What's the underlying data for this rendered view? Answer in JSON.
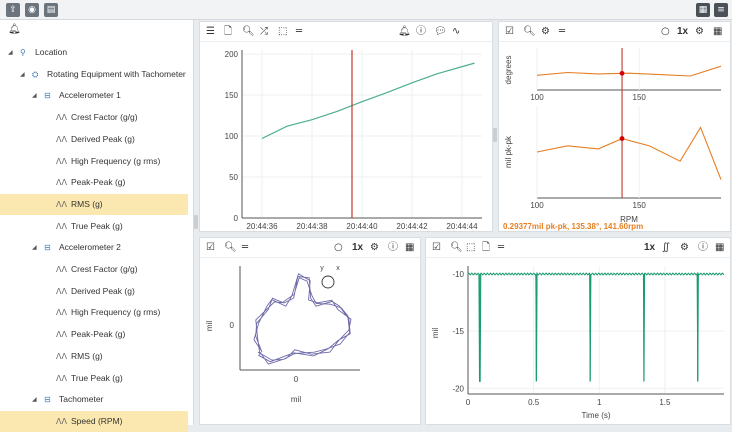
{
  "toolbar": {
    "icons": [
      "export-icon",
      "rss-icon",
      "document-icon"
    ],
    "right_icons": [
      "grid-layout-icon",
      "menu-icon"
    ]
  },
  "tree": {
    "items": [
      {
        "label": "Location",
        "level": 0,
        "icon": "location-pin-icon",
        "expanded": true
      },
      {
        "label": "Rotating Equipment with Tachometer",
        "level": 1,
        "icon": "machine-icon",
        "expanded": true
      },
      {
        "label": "Accelerometer 1",
        "level": 2,
        "icon": "sensor-icon",
        "expanded": true
      },
      {
        "label": "Crest Factor (g/g)",
        "level": 3,
        "icon": "waveform-icon"
      },
      {
        "label": "Derived Peak (g)",
        "level": 3,
        "icon": "waveform-icon"
      },
      {
        "label": "High Frequency (g rms)",
        "level": 3,
        "icon": "waveform-icon"
      },
      {
        "label": "Peak-Peak (g)",
        "level": 3,
        "icon": "waveform-icon"
      },
      {
        "label": "RMS (g)",
        "level": 3,
        "icon": "waveform-icon",
        "selected": true
      },
      {
        "label": "True Peak (g)",
        "level": 3,
        "icon": "waveform-icon"
      },
      {
        "label": "Accelerometer 2",
        "level": 2,
        "icon": "sensor-icon",
        "expanded": true
      },
      {
        "label": "Crest Factor (g/g)",
        "level": 3,
        "icon": "waveform-icon"
      },
      {
        "label": "Derived Peak (g)",
        "level": 3,
        "icon": "waveform-icon"
      },
      {
        "label": "High Frequency (g rms)",
        "level": 3,
        "icon": "waveform-icon"
      },
      {
        "label": "Peak-Peak (g)",
        "level": 3,
        "icon": "waveform-icon"
      },
      {
        "label": "RMS (g)",
        "level": 3,
        "icon": "waveform-icon"
      },
      {
        "label": "True Peak (g)",
        "level": 3,
        "icon": "waveform-icon"
      },
      {
        "label": "Tachometer",
        "level": 2,
        "icon": "sensor-icon",
        "expanded": true
      },
      {
        "label": "Speed (RPM)",
        "level": 3,
        "icon": "waveform-icon",
        "selected": true
      }
    ]
  },
  "trend_panel": {
    "zoom_label": "",
    "chart_data": {
      "type": "line",
      "x": [
        "20:44:36",
        "20:44:37",
        "20:44:38",
        "20:44:39",
        "20:44:40",
        "20:44:41",
        "20:44:42",
        "20:44:43",
        "20:44:44.5"
      ],
      "values": [
        97,
        112,
        120,
        130,
        142,
        153,
        165,
        176,
        189
      ],
      "xticks": [
        "20:44:36",
        "20:44:38",
        "20:44:40",
        "20:44:42",
        "20:44:44"
      ],
      "yticks": [
        "0",
        "50",
        "100",
        "150",
        "200"
      ],
      "ylim": [
        0,
        205
      ],
      "cursor_x": "20:44:39.6",
      "line_color": "#4cae8c",
      "cursor_color": "#c0392b"
    }
  },
  "bode_panel": {
    "zoom_label": "1x",
    "readout": "0.29377mil pk-pk, 135.38°, 141.60rpm",
    "chart_data": [
      {
        "type": "line",
        "ylabel": "degrees",
        "x": [
          100,
          115,
          130,
          145,
          160,
          175,
          190
        ],
        "values": [
          135.1,
          135.5,
          135.3,
          135.4,
          135.2,
          135.0,
          136.4
        ],
        "xticks": [
          "100",
          "150"
        ],
        "xlim": [
          100,
          190
        ]
      },
      {
        "type": "line",
        "ylabel": "mil pk-pk",
        "xlabel": "RPM",
        "x": [
          100,
          115,
          130,
          141.6,
          155,
          170,
          180,
          190
        ],
        "values": [
          0.25,
          0.27,
          0.26,
          0.29377,
          0.27,
          0.22,
          0.33,
          0.16
        ],
        "xticks": [
          "100",
          "150"
        ],
        "xlim": [
          100,
          190
        ],
        "cursor_x": 141.6,
        "line_color": "#e67e22",
        "cursor_color": "#c0392b"
      }
    ]
  },
  "orbit_panel": {
    "zoom_label": "1x",
    "axis_y_label": "y",
    "axis_x_label": "x",
    "chart_data": {
      "type": "scatter",
      "xlabel": "mil",
      "ylabel": "mil",
      "xticks": [
        "0"
      ],
      "yticks": [
        "0"
      ],
      "line_color": "#6e6aa8"
    }
  },
  "waveform_panel": {
    "zoom_label": "1x",
    "chart_data": {
      "type": "line",
      "xlabel": "Time (s)",
      "ylabel": "mil",
      "xticks": [
        "0",
        "0.5",
        "1",
        "1.5"
      ],
      "yticks": [
        "-10",
        "-15",
        "-20"
      ],
      "xlim": [
        0,
        1.95
      ],
      "ylim": [
        -20.5,
        -9.3
      ],
      "baseline": -10,
      "spike_times": [
        0.09,
        0.52,
        0.93,
        1.34,
        1.75
      ],
      "spike_min": -19.4,
      "line_color": "#1a9c73"
    }
  }
}
